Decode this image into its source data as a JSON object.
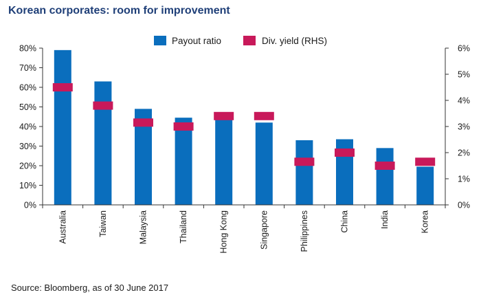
{
  "title": "Korean corporates: room for improvement",
  "source": "Source: Bloomberg, as of 30 June 2017",
  "chart_data": {
    "type": "bar",
    "categories": [
      "Australia",
      "Taiwan",
      "Malaysia",
      "Thailand",
      "Hong Kong",
      "Singapore",
      "Philippines",
      "China",
      "India",
      "Korea"
    ],
    "series": [
      {
        "name": "Payout ratio",
        "axis": "left",
        "kind": "bar",
        "color": "#0a6ebd",
        "values": [
          79,
          63,
          49,
          44.5,
          44.5,
          42,
          33,
          33.5,
          29,
          19.5
        ]
      },
      {
        "name": "Div. yield (RHS)",
        "axis": "right",
        "kind": "marker",
        "color": "#c8195a",
        "values": [
          4.5,
          3.8,
          3.15,
          3.0,
          3.4,
          3.4,
          1.65,
          2.0,
          1.5,
          1.65
        ]
      }
    ],
    "left_axis": {
      "ylim": [
        0,
        80
      ],
      "ticks": [
        "0%",
        "10%",
        "20%",
        "30%",
        "40%",
        "50%",
        "60%",
        "70%",
        "80%"
      ]
    },
    "right_axis": {
      "ylim": [
        0,
        6
      ],
      "ticks": [
        "0%",
        "1%",
        "2%",
        "3%",
        "4%",
        "5%",
        "6%"
      ]
    },
    "legend_position": "top-center",
    "grid": false
  }
}
